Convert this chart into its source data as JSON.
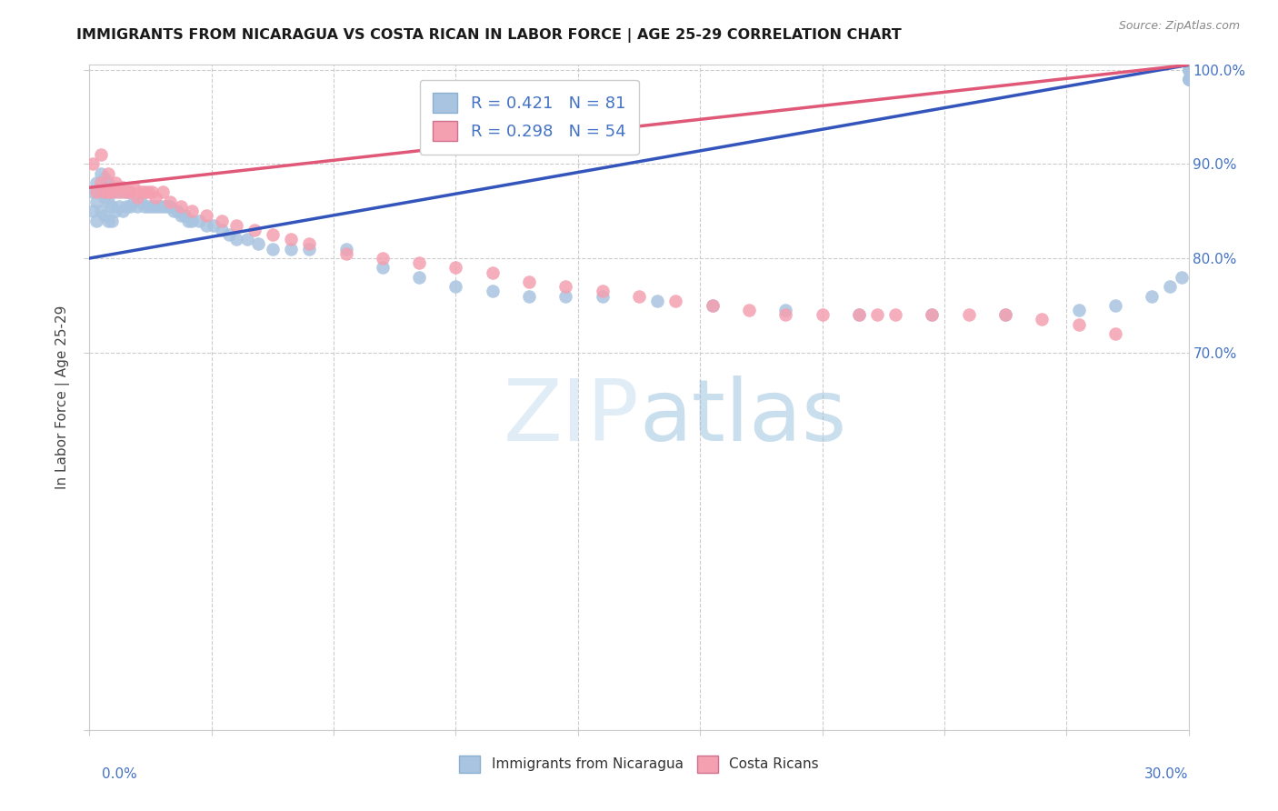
{
  "title": "IMMIGRANTS FROM NICARAGUA VS COSTA RICAN IN LABOR FORCE | AGE 25-29 CORRELATION CHART",
  "source": "Source: ZipAtlas.com",
  "legend_bottom": [
    "Immigrants from Nicaragua",
    "Costa Ricans"
  ],
  "r_blue": 0.421,
  "n_blue": 81,
  "r_pink": 0.298,
  "n_pink": 54,
  "blue_color": "#a8c4e0",
  "pink_color": "#f4a0b0",
  "blue_line_color": "#3355bb",
  "pink_line_color": "#e05878",
  "axis_label_color": "#4472c4",
  "title_color": "#1a1a1a",
  "watermark_color": "#cce0f0",
  "xmin": 0.0,
  "xmax": 0.3,
  "ymin": 0.3,
  "ymax": 1.005,
  "ylabel_label": "In Labor Force | Age 25-29",
  "blue_x": [
    0.001,
    0.001,
    0.002,
    0.002,
    0.002,
    0.003,
    0.003,
    0.003,
    0.004,
    0.004,
    0.004,
    0.005,
    0.005,
    0.005,
    0.006,
    0.006,
    0.006,
    0.007,
    0.007,
    0.008,
    0.008,
    0.009,
    0.009,
    0.01,
    0.01,
    0.011,
    0.011,
    0.012,
    0.013,
    0.014,
    0.015,
    0.016,
    0.017,
    0.018,
    0.019,
    0.02,
    0.021,
    0.022,
    0.023,
    0.024,
    0.025,
    0.026,
    0.027,
    0.028,
    0.03,
    0.032,
    0.034,
    0.036,
    0.038,
    0.04,
    0.043,
    0.046,
    0.05,
    0.055,
    0.06,
    0.07,
    0.08,
    0.09,
    0.1,
    0.11,
    0.12,
    0.13,
    0.14,
    0.155,
    0.17,
    0.19,
    0.21,
    0.23,
    0.25,
    0.27,
    0.28,
    0.29,
    0.295,
    0.298,
    0.3,
    0.3,
    0.3,
    0.3,
    0.3,
    0.3,
    0.3
  ],
  "blue_y": [
    0.85,
    0.87,
    0.84,
    0.86,
    0.88,
    0.85,
    0.87,
    0.89,
    0.845,
    0.865,
    0.885,
    0.84,
    0.86,
    0.88,
    0.84,
    0.855,
    0.87,
    0.85,
    0.87,
    0.855,
    0.875,
    0.85,
    0.87,
    0.855,
    0.87,
    0.855,
    0.87,
    0.86,
    0.855,
    0.86,
    0.855,
    0.855,
    0.855,
    0.855,
    0.855,
    0.855,
    0.855,
    0.855,
    0.85,
    0.85,
    0.845,
    0.845,
    0.84,
    0.84,
    0.84,
    0.835,
    0.835,
    0.83,
    0.825,
    0.82,
    0.82,
    0.815,
    0.81,
    0.81,
    0.81,
    0.81,
    0.79,
    0.78,
    0.77,
    0.765,
    0.76,
    0.76,
    0.76,
    0.755,
    0.75,
    0.745,
    0.74,
    0.74,
    0.74,
    0.745,
    0.75,
    0.76,
    0.77,
    0.78,
    0.99,
    0.99,
    0.99,
    0.99,
    1.0,
    1.0,
    1.0
  ],
  "pink_x": [
    0.001,
    0.002,
    0.003,
    0.003,
    0.004,
    0.005,
    0.005,
    0.006,
    0.007,
    0.008,
    0.009,
    0.01,
    0.011,
    0.012,
    0.013,
    0.014,
    0.015,
    0.016,
    0.017,
    0.018,
    0.02,
    0.022,
    0.025,
    0.028,
    0.032,
    0.036,
    0.04,
    0.045,
    0.05,
    0.055,
    0.06,
    0.07,
    0.08,
    0.09,
    0.1,
    0.11,
    0.12,
    0.13,
    0.14,
    0.15,
    0.16,
    0.17,
    0.18,
    0.19,
    0.2,
    0.21,
    0.215,
    0.22,
    0.23,
    0.24,
    0.25,
    0.26,
    0.27,
    0.28
  ],
  "pink_y": [
    0.9,
    0.87,
    0.91,
    0.88,
    0.87,
    0.89,
    0.87,
    0.87,
    0.88,
    0.87,
    0.875,
    0.87,
    0.87,
    0.875,
    0.865,
    0.87,
    0.87,
    0.87,
    0.87,
    0.865,
    0.87,
    0.86,
    0.855,
    0.85,
    0.845,
    0.84,
    0.835,
    0.83,
    0.825,
    0.82,
    0.815,
    0.805,
    0.8,
    0.795,
    0.79,
    0.785,
    0.775,
    0.77,
    0.765,
    0.76,
    0.755,
    0.75,
    0.745,
    0.74,
    0.74,
    0.74,
    0.74,
    0.74,
    0.74,
    0.74,
    0.74,
    0.735,
    0.73,
    0.72
  ],
  "blue_line_x0": 0.0,
  "blue_line_y0": 0.8,
  "blue_line_x1": 0.3,
  "blue_line_y1": 1.005,
  "pink_line_x0": 0.0,
  "pink_line_y0": 0.875,
  "pink_line_x1": 0.3,
  "pink_line_y1": 1.005
}
